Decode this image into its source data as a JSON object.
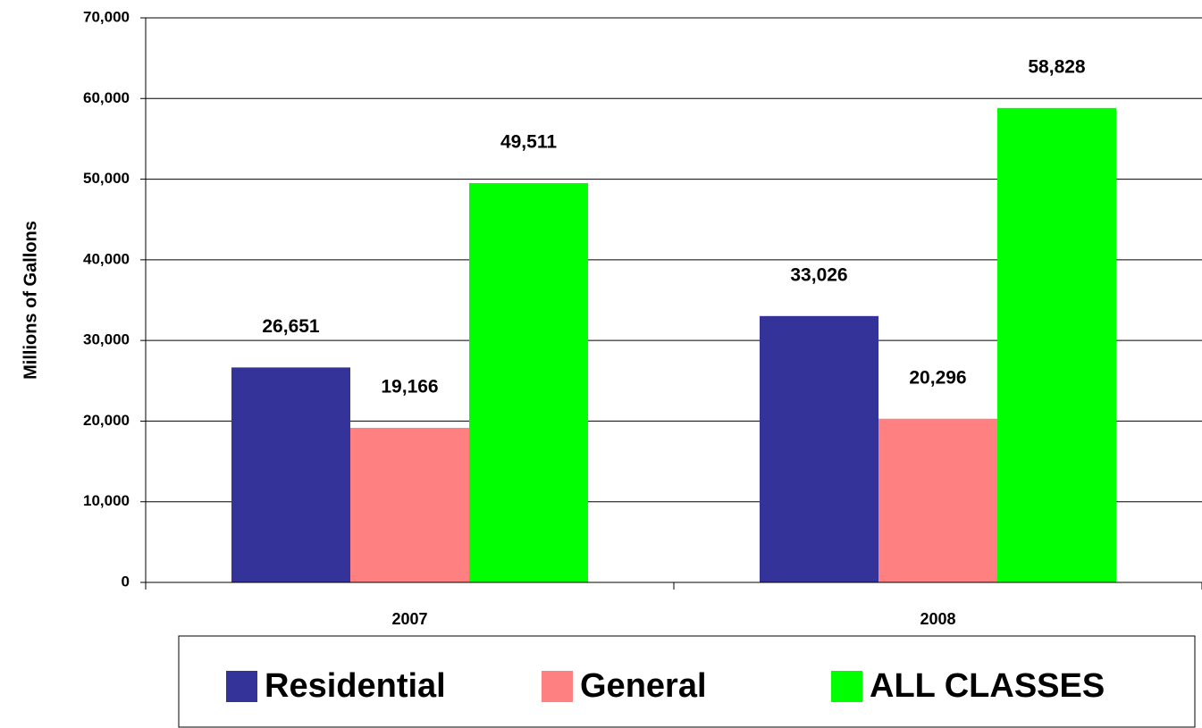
{
  "chart_data": {
    "type": "bar",
    "y_label": "Millions of Gallons",
    "categories": [
      "2007",
      "2008"
    ],
    "series": [
      {
        "name": "Residential",
        "color": "#333399",
        "values": [
          26651,
          33026
        ],
        "value_labels": [
          "26,651",
          "33,026"
        ]
      },
      {
        "name": "General",
        "color": "#ff8080",
        "values": [
          19166,
          20296
        ],
        "value_labels": [
          "19,166",
          "20,296"
        ]
      },
      {
        "name": "ALL CLASSES",
        "color": "#00ff00",
        "values": [
          49511,
          58828
        ],
        "value_labels": [
          "49,511",
          "58,828"
        ]
      }
    ],
    "ylim": [
      0,
      70000
    ],
    "yticks": [
      0,
      {
        "value": 10000,
        "label": "10,000"
      },
      {
        "value": 20000,
        "label": "20,000"
      },
      {
        "value": 30000,
        "label": "30,000"
      },
      {
        "value": 40000,
        "label": "40,000"
      },
      {
        "value": 50000,
        "label": "50,000"
      },
      {
        "value": 60000,
        "label": "60,000"
      },
      {
        "value": 70000,
        "label": "70,000"
      }
    ],
    "grid": true,
    "legend": "bottom"
  }
}
